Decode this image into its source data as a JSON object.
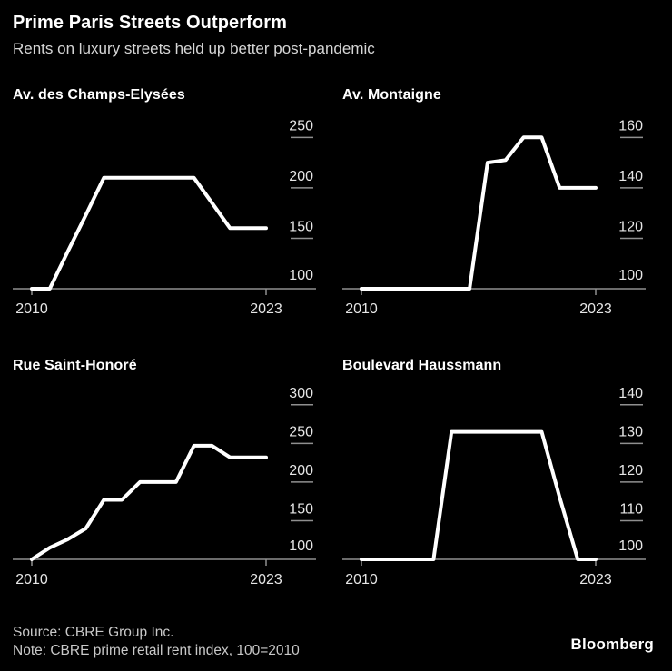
{
  "header": {
    "title": "Prime Paris Streets Outperform",
    "subtitle": "Rents on luxury streets held up better post-pandemic"
  },
  "footer": {
    "source": "Source: CBRE Group Inc.",
    "note": "Note: CBRE prime retail rent index, 100=2010",
    "brand": "Bloomberg"
  },
  "colors": {
    "background": "#000000",
    "line": "#ffffff",
    "axis": "#8f8f8f",
    "tick_label": "#e6e6e6"
  },
  "chart_data": [
    {
      "type": "line",
      "title": "Av. des Champs-Elysées",
      "x": [
        2010,
        2011,
        2012,
        2013,
        2014,
        2015,
        2016,
        2017,
        2018,
        2019,
        2020,
        2021,
        2022,
        2023
      ],
      "values": [
        100,
        100,
        137,
        173,
        210,
        210,
        210,
        210,
        210,
        210,
        185,
        160,
        160,
        160
      ],
      "yticks": [
        100,
        150,
        200,
        250
      ],
      "ylim": [
        100,
        280
      ],
      "xtick_labels": [
        "2010",
        "2023"
      ],
      "legend": "none",
      "grid": "off"
    },
    {
      "type": "line",
      "title": "Av. Montaigne",
      "x": [
        2010,
        2011,
        2012,
        2013,
        2014,
        2015,
        2016,
        2017,
        2018,
        2019,
        2020,
        2021,
        2022,
        2023
      ],
      "values": [
        100,
        100,
        100,
        100,
        100,
        100,
        100,
        150,
        151,
        160,
        160,
        140,
        140,
        140
      ],
      "yticks": [
        100,
        120,
        140,
        160
      ],
      "ylim": [
        100,
        172
      ],
      "xtick_labels": [
        "2010",
        "2023"
      ],
      "legend": "none",
      "grid": "off"
    },
    {
      "type": "line",
      "title": "Rue Saint-Honoré",
      "x": [
        2010,
        2011,
        2012,
        2013,
        2014,
        2015,
        2016,
        2017,
        2018,
        2019,
        2020,
        2021,
        2022,
        2023
      ],
      "values": [
        100,
        115,
        126,
        140,
        177,
        177,
        200,
        200,
        200,
        247,
        247,
        232,
        232,
        232
      ],
      "yticks": [
        100,
        150,
        200,
        250,
        300
      ],
      "ylim": [
        100,
        335
      ],
      "xtick_labels": [
        "2010",
        "2023"
      ],
      "legend": "none",
      "grid": "off"
    },
    {
      "type": "line",
      "title": "Boulevard Haussmann",
      "x": [
        2010,
        2011,
        2012,
        2013,
        2014,
        2015,
        2016,
        2017,
        2018,
        2019,
        2020,
        2021,
        2022,
        2023
      ],
      "values": [
        100,
        100,
        100,
        100,
        100,
        133,
        133,
        133,
        133,
        133,
        133,
        116,
        100,
        100
      ],
      "yticks": [
        100,
        110,
        120,
        130,
        140
      ],
      "ylim": [
        100,
        147
      ],
      "xtick_labels": [
        "2010",
        "2023"
      ],
      "legend": "none",
      "grid": "off"
    }
  ]
}
